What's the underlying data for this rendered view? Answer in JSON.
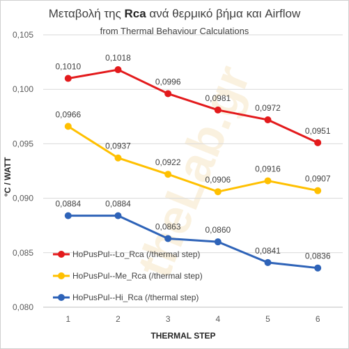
{
  "chart_data": {
    "type": "line",
    "title_pre": "Μεταβολή της ",
    "title_bold": "Rca",
    "title_post": " ανά θερμικό βήμα και  Airflow",
    "subtitle": "from Thermal Behaviour Calculations",
    "xlabel": "THERMAL  STEP",
    "ylabel": "°C / WATT",
    "categories": [
      "1",
      "2",
      "3",
      "4",
      "5",
      "6"
    ],
    "ylim": [
      0.08,
      0.105
    ],
    "yticks": [
      "0,080",
      "0,085",
      "0,090",
      "0,095",
      "0,100",
      "0,105"
    ],
    "ytick_values": [
      0.08,
      0.085,
      0.09,
      0.095,
      0.1,
      0.105
    ],
    "grid": "horizontal",
    "legend_position": "bottom-left",
    "watermark": "theLab.gr",
    "series": [
      {
        "name": "HoPusPul--Lo_Rca (/thermal step)",
        "color": "#e31a1c",
        "values": [
          0.101,
          0.1018,
          0.0996,
          0.0981,
          0.0972,
          0.0951
        ],
        "labels": [
          "0,1010",
          "0,1018",
          "0,0996",
          "0,0981",
          "0,0972",
          "0,0951"
        ]
      },
      {
        "name": "HoPusPul--Me_Rca (/thermal step)",
        "color": "#ffc000",
        "values": [
          0.0966,
          0.0937,
          0.0922,
          0.0906,
          0.0916,
          0.0907
        ],
        "labels": [
          "0,0966",
          "0,0937",
          "0,0922",
          "0,0906",
          "0,0916",
          "0,0907"
        ]
      },
      {
        "name": "HoPusPul--Hi_Rca (/thermal step)",
        "color": "#2e63b8",
        "values": [
          0.0884,
          0.0884,
          0.0863,
          0.086,
          0.0841,
          0.0836
        ],
        "labels": [
          "0,0884",
          "0,0884",
          "0,0863",
          "0,0860",
          "0,0841",
          "0,0836"
        ]
      }
    ]
  }
}
